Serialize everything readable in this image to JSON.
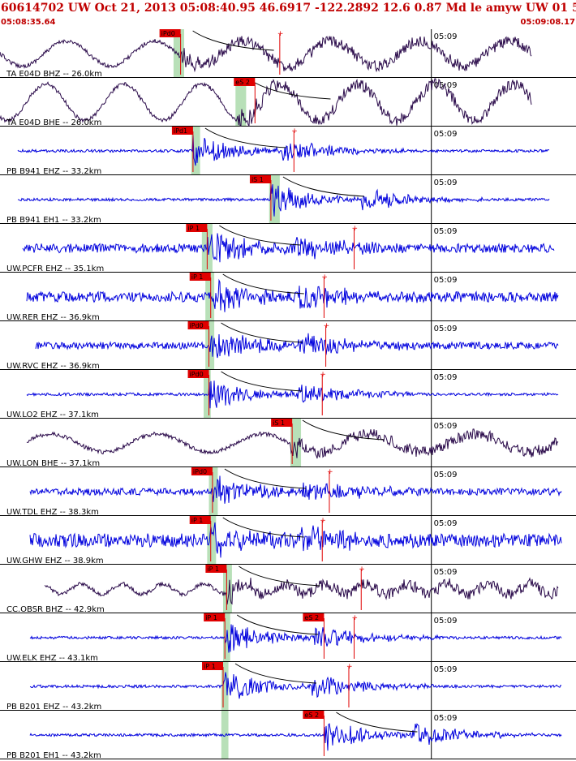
{
  "header": {
    "title": "60614702 UW Oct 21, 2013 05:08:40.95   46.6917 -122.2892 12.6 0.87 Md le amyw UW 01   5",
    "start_time": "05:08:35.64",
    "end_time": "05:09:08.17"
  },
  "colors": {
    "vertical_trace": "#0000dd",
    "broadband_trace": "#2a0a4a",
    "pick": "#e00000",
    "window": "#b8e0b8",
    "header_text": "#c00000"
  },
  "chart_data": {
    "type": "line",
    "title": "",
    "x_unit": "seconds after 05:08:35.64",
    "xlim": [
      0,
      32.53
    ],
    "time_mark_label": "05:09",
    "time_mark_x": 24.36,
    "traces": [
      {
        "label": "TA E04D BHZ -- 26.0km",
        "color": "#2a0a4a",
        "kind": "bb",
        "start": 0.0,
        "end": 30.0,
        "arrival": 10.2,
        "amp": 0.55,
        "period": 5.0,
        "picks": [
          {
            "label": "iPd0",
            "t": 10.2
          },
          {
            "label": "",
            "t": 15.8
          }
        ],
        "window": [
          9.8,
          10.4
        ]
      },
      {
        "label": "TA E04D BHE -- 26.0km",
        "color": "#2a0a4a",
        "kind": "bb",
        "start": 0.0,
        "end": 30.0,
        "arrival": 13.4,
        "amp": 0.8,
        "period": 4.4,
        "picks": [
          {
            "label": "eS 2",
            "t": 14.4
          }
        ],
        "window": [
          13.3,
          13.9
        ]
      },
      {
        "label": "PB B941 EHZ -- 33.2km",
        "color": "#0000dd",
        "kind": "sp",
        "start": 1.0,
        "end": 31.0,
        "arrival": 10.9,
        "amp": 0.12,
        "period": 0,
        "picks": [
          {
            "label": "iPd1",
            "t": 10.9
          },
          {
            "label": "",
            "t": 16.6
          }
        ],
        "window": [
          10.8,
          11.3
        ]
      },
      {
        "label": "PB B941 EH1 -- 33.2km",
        "color": "#0000dd",
        "kind": "sp",
        "start": 1.0,
        "end": 31.0,
        "arrival": 15.3,
        "amp": 0.12,
        "period": 0,
        "picks": [
          {
            "label": "iS 1",
            "t": 15.3
          }
        ],
        "window": [
          15.2,
          15.8
        ]
      },
      {
        "label": "UW.PCFR EHZ -- 35.1km",
        "color": "#0000dd",
        "kind": "sp",
        "start": 1.3,
        "end": 31.3,
        "arrival": 11.7,
        "amp": 0.4,
        "period": 0,
        "picks": [
          {
            "label": "iP 1",
            "t": 11.7
          },
          {
            "label": "",
            "t": 20.0
          }
        ],
        "window": [
          11.4,
          12.0
        ]
      },
      {
        "label": "UW.RER EHZ -- 36.9km",
        "color": "#0000dd",
        "kind": "sp",
        "start": 1.5,
        "end": 31.5,
        "arrival": 11.9,
        "amp": 0.45,
        "period": 0,
        "picks": [
          {
            "label": "iP 1",
            "t": 11.9
          },
          {
            "label": "",
            "t": 18.3
          }
        ],
        "window": [
          11.6,
          12.1
        ]
      },
      {
        "label": "UW.RVC EHZ -- 36.9km",
        "color": "#0000dd",
        "kind": "sp",
        "start": 2.0,
        "end": 31.5,
        "arrival": 11.8,
        "amp": 0.3,
        "period": 0,
        "picks": [
          {
            "label": "iPd0",
            "t": 11.8
          },
          {
            "label": "",
            "t": 18.4
          }
        ],
        "window": [
          11.6,
          12.1
        ]
      },
      {
        "label": "UW.LO2 EHZ -- 37.1km",
        "color": "#0000dd",
        "kind": "sp",
        "start": 1.5,
        "end": 31.5,
        "arrival": 11.8,
        "amp": 0.12,
        "period": 0,
        "picks": [
          {
            "label": "iPd0",
            "t": 11.8
          },
          {
            "label": "",
            "t": 18.2
          }
        ],
        "window": [
          11.5,
          11.9
        ]
      },
      {
        "label": "UW.LON BHE -- 37.1km",
        "color": "#2a0a4a",
        "kind": "bb",
        "start": 1.5,
        "end": 31.5,
        "arrival": 16.4,
        "amp": 0.4,
        "period": 6.0,
        "picks": [
          {
            "label": "iS 1",
            "t": 16.5
          }
        ],
        "window": [
          16.4,
          17.0
        ]
      },
      {
        "label": "UW.TDL EHZ -- 38.3km",
        "color": "#0000dd",
        "kind": "sp",
        "start": 1.7,
        "end": 31.7,
        "arrival": 12.0,
        "amp": 0.3,
        "period": 0,
        "picks": [
          {
            "label": "iPd0",
            "t": 12.0
          },
          {
            "label": "",
            "t": 18.6
          }
        ],
        "window": [
          11.8,
          12.3
        ]
      },
      {
        "label": "UW.GHW EHZ -- 38.9km",
        "color": "#0000dd",
        "kind": "sp",
        "start": 1.7,
        "end": 31.7,
        "arrival": 11.9,
        "amp": 0.6,
        "period": 0,
        "picks": [
          {
            "label": "iP 1",
            "t": 11.9
          },
          {
            "label": "",
            "t": 18.2
          }
        ],
        "window": [
          11.7,
          12.2
        ]
      },
      {
        "label": "CC.OBSR BHZ -- 42.9km",
        "color": "#2a0a4a",
        "kind": "bb",
        "start": 2.5,
        "end": 31.5,
        "arrival": 12.8,
        "amp": 0.22,
        "period": 2.3,
        "picks": [
          {
            "label": "iP 1",
            "t": 12.8
          },
          {
            "label": "",
            "t": 20.4
          }
        ],
        "window": [
          12.6,
          13.1
        ]
      },
      {
        "label": "UW.ELK EHZ -- 43.1km",
        "color": "#0000dd",
        "kind": "sp",
        "start": 1.7,
        "end": 31.7,
        "arrival": 12.7,
        "amp": 0.12,
        "period": 0,
        "picks": [
          {
            "label": "iP 1",
            "t": 12.7
          },
          {
            "label": "eS 2",
            "t": 18.3
          },
          {
            "label": "",
            "t": 20.0
          }
        ],
        "window": [
          12.6,
          13.0
        ]
      },
      {
        "label": "PB B201 EHZ -- 43.2km",
        "color": "#0000dd",
        "kind": "sp",
        "start": 1.7,
        "end": 31.7,
        "arrival": 12.6,
        "amp": 0.12,
        "period": 0,
        "picks": [
          {
            "label": "iP 1",
            "t": 12.6
          },
          {
            "label": "",
            "t": 19.7
          }
        ],
        "window": [
          12.5,
          12.9
        ]
      },
      {
        "label": "PB B201 EH1 -- 43.2km",
        "color": "#0000dd",
        "kind": "sp",
        "start": 1.7,
        "end": 31.7,
        "arrival": 18.3,
        "amp": 0.12,
        "period": 0,
        "picks": [
          {
            "label": "eS 2",
            "t": 18.3
          }
        ],
        "window": [
          12.5,
          12.9
        ]
      }
    ]
  }
}
